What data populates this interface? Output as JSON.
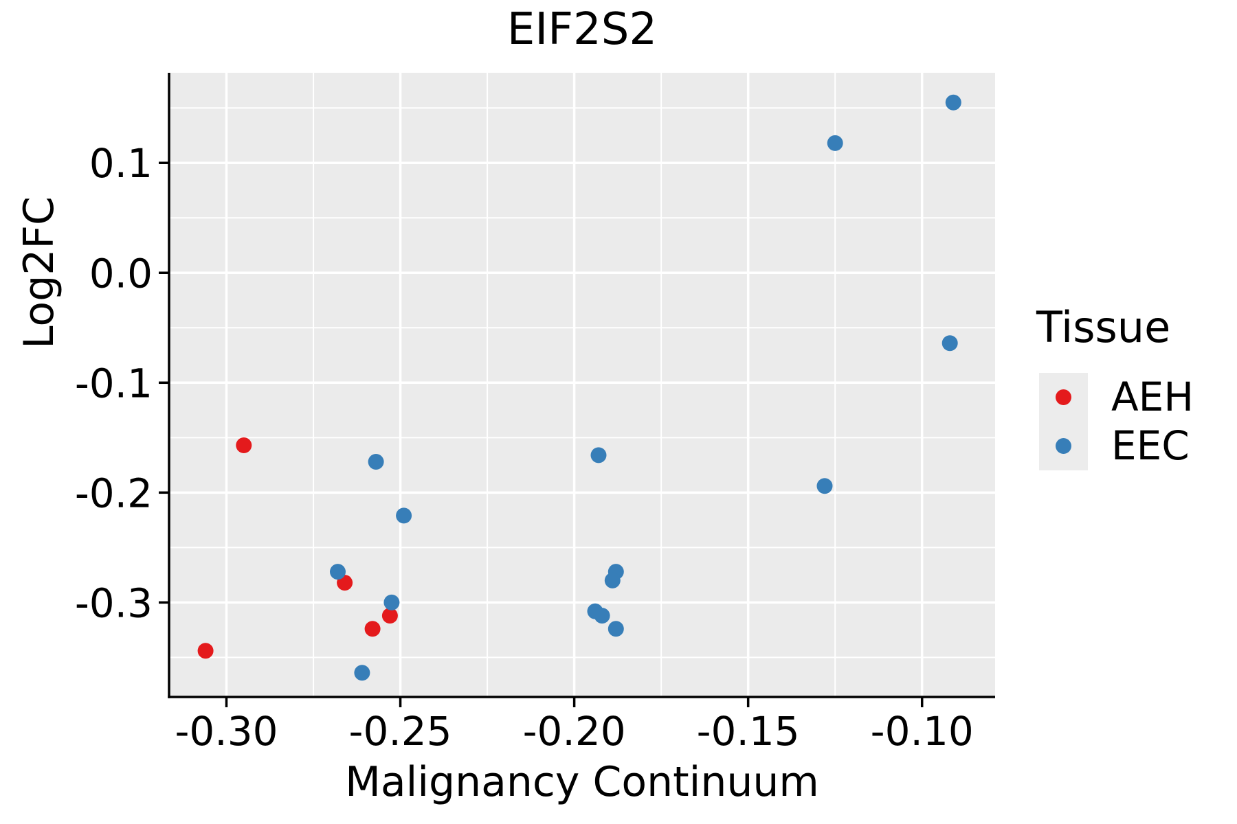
{
  "figure": {
    "title": "EIF2S2"
  },
  "legend": {
    "title": "Tissue",
    "items": [
      {
        "label": "AEH",
        "color": "#E41A1C"
      },
      {
        "label": "EEC",
        "color": "#377EB8"
      }
    ]
  },
  "chart_data": {
    "type": "scatter",
    "title": "EIF2S2",
    "xlabel": "Malignancy Continuum",
    "ylabel": "Log2FC",
    "xlim": [
      -0.3165,
      -0.079
    ],
    "ylim": [
      -0.386,
      0.182
    ],
    "x_ticks": [
      -0.3,
      -0.25,
      -0.2,
      -0.15,
      -0.1
    ],
    "x_tick_labels": [
      "-0.30",
      "-0.25",
      "-0.20",
      "-0.15",
      "-0.10"
    ],
    "y_ticks": [
      0.1,
      0.0,
      -0.1,
      -0.2,
      -0.3
    ],
    "y_tick_labels": [
      "0.1",
      "0.0",
      "-0.1",
      "-0.2",
      "-0.3"
    ],
    "grid": {
      "major": true,
      "minor": true
    },
    "legend_position": "right",
    "panel_bg": "#EBEBEB",
    "grid_color": "#FFFFFF",
    "axis_color": "#000000",
    "point_radius_px": 11.5,
    "series": [
      {
        "name": "AEH",
        "color": "#E41A1C",
        "points": [
          [
            -0.295,
            -0.157
          ],
          [
            -0.306,
            -0.344
          ],
          [
            -0.266,
            -0.282
          ],
          [
            -0.253,
            -0.312
          ],
          [
            -0.258,
            -0.324
          ]
        ]
      },
      {
        "name": "EEC",
        "color": "#377EB8",
        "points": [
          [
            -0.257,
            -0.172
          ],
          [
            -0.249,
            -0.221
          ],
          [
            -0.268,
            -0.272
          ],
          [
            -0.2525,
            -0.3
          ],
          [
            -0.261,
            -0.364
          ],
          [
            -0.193,
            -0.166
          ],
          [
            -0.188,
            -0.272
          ],
          [
            -0.189,
            -0.28
          ],
          [
            -0.194,
            -0.308
          ],
          [
            -0.192,
            -0.312
          ],
          [
            -0.188,
            -0.324
          ],
          [
            -0.125,
            0.118
          ],
          [
            -0.091,
            0.155
          ],
          [
            -0.092,
            -0.064
          ],
          [
            -0.128,
            -0.194
          ]
        ]
      }
    ]
  }
}
